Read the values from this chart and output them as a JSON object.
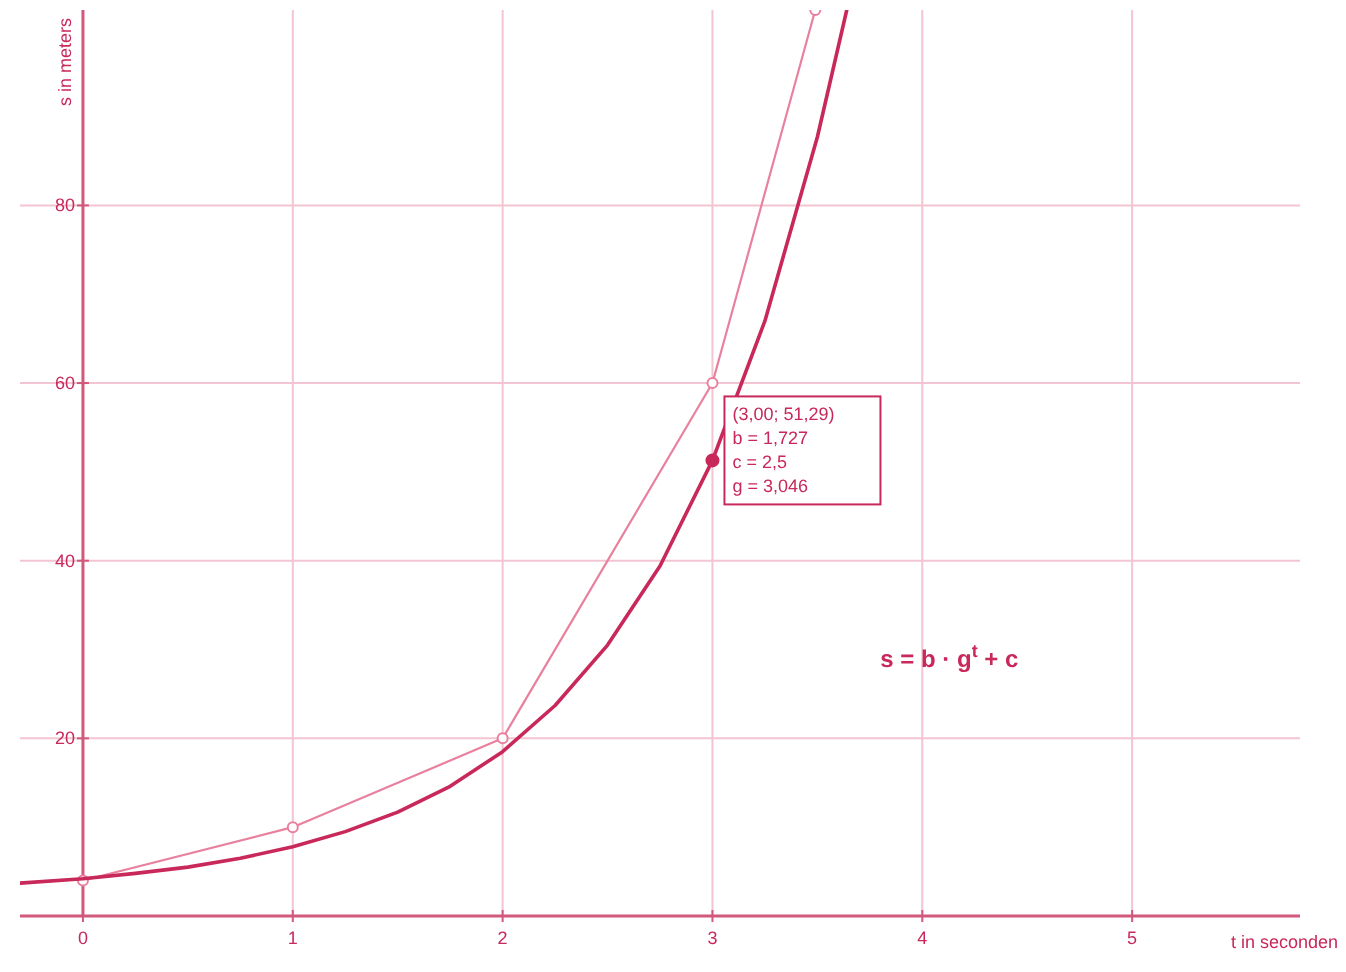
{
  "chart_data": {
    "type": "line",
    "xlabel": "t in seconden",
    "ylabel": "s in meters",
    "xlim": [
      -0.3,
      5.8
    ],
    "ylim": [
      0,
      102
    ],
    "xticks": [
      0,
      1,
      2,
      3,
      4,
      5
    ],
    "yticks": [
      20,
      40,
      60,
      80
    ],
    "grid": true,
    "series": [
      {
        "color": "#e8809e",
        "marker": "circle",
        "x": [
          0,
          1,
          2,
          3,
          3.49
        ],
        "values": [
          4,
          10,
          20,
          60,
          102
        ]
      },
      {
        "color": "#c8285a",
        "marker": "none",
        "x": [
          -0.3,
          0,
          0.25,
          0.5,
          0.75,
          1,
          1.25,
          1.5,
          1.75,
          2,
          2.25,
          2.5,
          2.75,
          3,
          3.25,
          3.5,
          3.64
        ],
        "values": [
          3.7,
          4.2,
          4.8,
          5.5,
          6.5,
          7.8,
          9.5,
          11.7,
          14.6,
          18.5,
          23.7,
          30.5,
          39.4,
          51.3,
          67,
          87.7,
          102
        ]
      },
      {
        "type": "scatter",
        "color": "#c8285a",
        "marker": "circle",
        "x": [
          3
        ],
        "values": [
          51.29
        ]
      }
    ],
    "annotations": [
      {
        "text": "(3,00; 51,29)",
        "x": 3,
        "y": 51.29
      },
      "b = 1,727",
      "c = 2,5",
      "g = 3,046",
      "s = b · g$^{t}$ + c"
    ]
  }
}
